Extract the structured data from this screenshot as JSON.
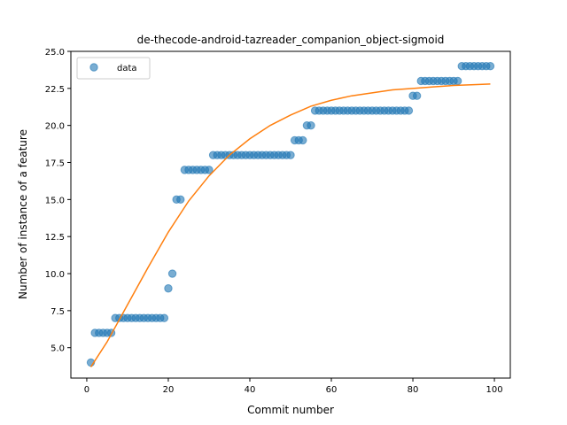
{
  "chart_data": {
    "type": "scatter",
    "title": "de-thecode-android-tazreader_companion_object-sigmoid",
    "xlabel": "Commit number",
    "ylabel": "Number of instance of a feature",
    "xlim": [
      -3.9,
      103.9
    ],
    "ylim": [
      2.95,
      25.0
    ],
    "xticks": [
      0,
      20,
      40,
      60,
      80,
      100
    ],
    "yticks": [
      5.0,
      7.5,
      10.0,
      12.5,
      15.0,
      17.5,
      20.0,
      22.5,
      25.0
    ],
    "xtick_labels": [
      "0",
      "20",
      "40",
      "60",
      "80",
      "100"
    ],
    "ytick_labels": [
      "5.0",
      "7.5",
      "10.0",
      "12.5",
      "15.0",
      "17.5",
      "20.0",
      "22.5",
      "25.0"
    ],
    "legend": {
      "position": "upper-left",
      "entries": [
        "data"
      ]
    },
    "colors": {
      "data": "#1f77b4",
      "fit": "#ff7f0e"
    },
    "series": [
      {
        "name": "data",
        "kind": "scatter",
        "x": [
          1,
          2,
          3,
          4,
          5,
          6,
          7,
          8,
          9,
          10,
          11,
          12,
          13,
          14,
          15,
          16,
          17,
          18,
          19,
          20,
          21,
          22,
          23,
          24,
          25,
          26,
          27,
          28,
          29,
          30,
          31,
          32,
          33,
          34,
          35,
          36,
          37,
          38,
          39,
          40,
          41,
          42,
          43,
          44,
          45,
          46,
          47,
          48,
          49,
          50,
          51,
          52,
          53,
          54,
          55,
          56,
          57,
          58,
          59,
          60,
          61,
          62,
          63,
          64,
          65,
          66,
          67,
          68,
          69,
          70,
          71,
          72,
          73,
          74,
          75,
          76,
          77,
          78,
          79,
          80,
          81,
          82,
          83,
          84,
          85,
          86,
          87,
          88,
          89,
          90,
          91,
          92,
          93,
          94,
          95,
          96,
          97,
          98,
          99
        ],
        "y": [
          4,
          6,
          6,
          6,
          6,
          6,
          7,
          7,
          7,
          7,
          7,
          7,
          7,
          7,
          7,
          7,
          7,
          7,
          7,
          9,
          10,
          15,
          15,
          17,
          17,
          17,
          17,
          17,
          17,
          17,
          18,
          18,
          18,
          18,
          18,
          18,
          18,
          18,
          18,
          18,
          18,
          18,
          18,
          18,
          18,
          18,
          18,
          18,
          18,
          18,
          19,
          19,
          19,
          20,
          20,
          21,
          21,
          21,
          21,
          21,
          21,
          21,
          21,
          21,
          21,
          21,
          21,
          21,
          21,
          21,
          21,
          21,
          21,
          21,
          21,
          21,
          21,
          21,
          21,
          22,
          22,
          23,
          23,
          23,
          23,
          23,
          23,
          23,
          23,
          23,
          23,
          24,
          24,
          24,
          24,
          24,
          24,
          24,
          24
        ]
      },
      {
        "kind": "line",
        "x": [
          1,
          5,
          10,
          15,
          20,
          25,
          30,
          35,
          40,
          45,
          50,
          55,
          60,
          65,
          70,
          75,
          80,
          85,
          90,
          95,
          99
        ],
        "y": [
          3.7,
          5.4,
          7.9,
          10.4,
          12.8,
          14.9,
          16.6,
          18.0,
          19.1,
          20.0,
          20.7,
          21.3,
          21.7,
          22.0,
          22.2,
          22.4,
          22.5,
          22.6,
          22.7,
          22.75,
          22.8
        ]
      }
    ]
  }
}
